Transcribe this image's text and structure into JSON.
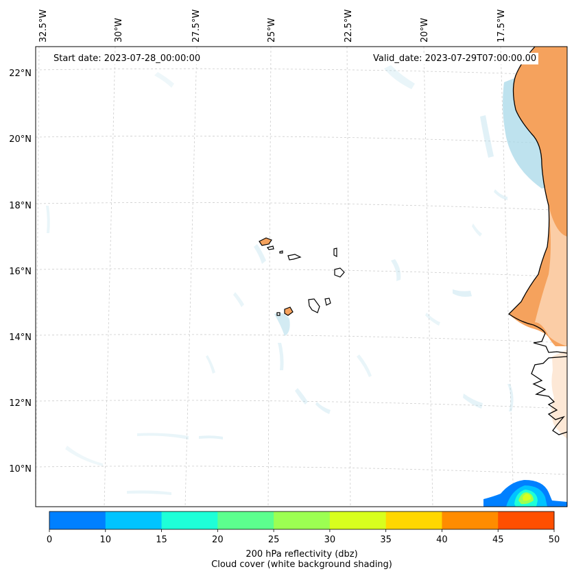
{
  "map": {
    "longitude_labels": [
      "32.5°W",
      "30°W",
      "27.5°W",
      "25°W",
      "22.5°W",
      "20°W",
      "17.5°W"
    ],
    "latitude_labels": [
      "22°N",
      "20°N",
      "18°N",
      "16°N",
      "14°N",
      "12°N",
      "10°N"
    ],
    "start_date": "Start date: 2023-07-28_00:00:00",
    "valid_date": "Valid_date: 2023-07-29T07:00:00.00"
  },
  "colorbar": {
    "ticks": [
      "0",
      "10",
      "15",
      "20",
      "25",
      "30",
      "35",
      "40",
      "45",
      "50"
    ],
    "colors": [
      "#0080ff",
      "#00c4ff",
      "#1effd8",
      "#5cff8e",
      "#9cff52",
      "#d8ff1e",
      "#ffd700",
      "#ff8c00",
      "#ff4f00"
    ],
    "label_line1": "200 hPa reflectivity (dbz)",
    "label_line2": "Cloud cover (white background shading)"
  },
  "colors": {
    "land": "#f5a25d",
    "cloud": "#a8d8e8",
    "grid": "#cccccc"
  }
}
